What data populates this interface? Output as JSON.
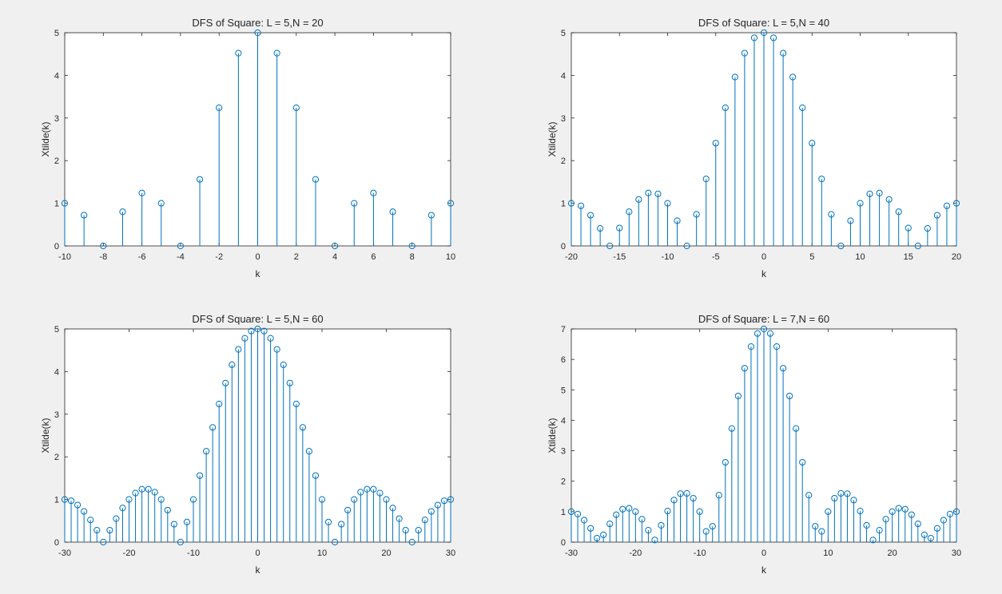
{
  "figure": {
    "background": "#f0f0f0",
    "axes_color": "#262626",
    "stem_color": "#0072bd"
  },
  "chart_data": [
    {
      "type": "stem",
      "title": "DFS of Square: L = 5,N = 20",
      "xlabel": "k",
      "ylabel": "Xtilde(k)",
      "xlim": [
        -10,
        10
      ],
      "ylim": [
        0,
        5
      ],
      "xticks": [
        -10,
        -8,
        -6,
        -4,
        -2,
        0,
        2,
        4,
        6,
        8,
        10
      ],
      "yticks": [
        0,
        1,
        2,
        3,
        4,
        5
      ],
      "x": [
        -10,
        -9,
        -8,
        -7,
        -6,
        -5,
        -4,
        -3,
        -2,
        -1,
        0,
        1,
        2,
        3,
        4,
        5,
        6,
        7,
        8,
        9,
        10
      ],
      "y": [
        1,
        0.72,
        0,
        0.8,
        1.24,
        1,
        0,
        1.56,
        3.24,
        4.52,
        5,
        4.52,
        3.24,
        1.56,
        0,
        1,
        1.24,
        0.8,
        0,
        0.72,
        1
      ]
    },
    {
      "type": "stem",
      "title": "DFS of Square: L = 5,N = 40",
      "xlabel": "k",
      "ylabel": "Xtilde(k)",
      "xlim": [
        -20,
        20
      ],
      "ylim": [
        0,
        5
      ],
      "xticks": [
        -20,
        -15,
        -10,
        -5,
        0,
        5,
        10,
        15,
        20
      ],
      "yticks": [
        0,
        1,
        2,
        3,
        4,
        5
      ],
      "x": [
        -20,
        -19,
        -18,
        -17,
        -16,
        -15,
        -14,
        -13,
        -12,
        -11,
        -10,
        -9,
        -8,
        -7,
        -6,
        -5,
        -4,
        -3,
        -2,
        -1,
        0,
        1,
        2,
        3,
        4,
        5,
        6,
        7,
        8,
        9,
        10,
        11,
        12,
        13,
        14,
        15,
        16,
        17,
        18,
        19,
        20
      ],
      "y": [
        1,
        0.94,
        0.72,
        0.41,
        0,
        0.42,
        0.8,
        1.09,
        1.24,
        1.22,
        1,
        0.59,
        0,
        0.74,
        1.57,
        2.41,
        3.24,
        3.96,
        4.52,
        4.88,
        5,
        4.88,
        4.52,
        3.96,
        3.24,
        2.41,
        1.57,
        0.74,
        0,
        0.59,
        1,
        1.22,
        1.24,
        1.09,
        0.8,
        0.42,
        0,
        0.41,
        0.72,
        0.94,
        1
      ]
    },
    {
      "type": "stem",
      "title": "DFS of Square: L = 5,N = 60",
      "xlabel": "k",
      "ylabel": "Xtilde(k)",
      "xlim": [
        -30,
        30
      ],
      "ylim": [
        0,
        5
      ],
      "xticks": [
        -30,
        -20,
        -10,
        0,
        10,
        20,
        30
      ],
      "yticks": [
        0,
        1,
        2,
        3,
        4,
        5
      ],
      "x": [
        -30,
        -29,
        -28,
        -27,
        -26,
        -25,
        -24,
        -23,
        -22,
        -21,
        -20,
        -19,
        -18,
        -17,
        -16,
        -15,
        -14,
        -13,
        -12,
        -11,
        -10,
        -9,
        -8,
        -7,
        -6,
        -5,
        -4,
        -3,
        -2,
        -1,
        0,
        1,
        2,
        3,
        4,
        5,
        6,
        7,
        8,
        9,
        10,
        11,
        12,
        13,
        14,
        15,
        16,
        17,
        18,
        19,
        20,
        21,
        22,
        23,
        24,
        25,
        26,
        27,
        28,
        29,
        30
      ],
      "y": [
        1,
        0.97,
        0.87,
        0.72,
        0.52,
        0.28,
        0,
        0.28,
        0.55,
        0.8,
        1,
        1.15,
        1.24,
        1.24,
        1.17,
        1,
        0.75,
        0.42,
        0,
        0.47,
        1,
        1.56,
        2.13,
        2.69,
        3.24,
        3.73,
        4.16,
        4.52,
        4.78,
        4.95,
        5,
        4.95,
        4.78,
        4.52,
        4.16,
        3.73,
        3.24,
        2.69,
        2.13,
        1.56,
        1,
        0.47,
        0,
        0.42,
        0.75,
        1,
        1.17,
        1.24,
        1.24,
        1.15,
        1,
        0.8,
        0.55,
        0.28,
        0,
        0.28,
        0.52,
        0.72,
        0.87,
        0.97,
        1
      ]
    },
    {
      "type": "stem",
      "title": "DFS of Square: L = 7,N = 60",
      "xlabel": "k",
      "ylabel": "Xtilde(k)",
      "xlim": [
        -30,
        30
      ],
      "ylim": [
        0,
        7
      ],
      "xticks": [
        -30,
        -20,
        -10,
        0,
        10,
        20,
        30
      ],
      "yticks": [
        0,
        1,
        2,
        3,
        4,
        5,
        6,
        7
      ],
      "x": [
        -30,
        -29,
        -28,
        -27,
        -26,
        -25,
        -24,
        -23,
        -22,
        -21,
        -20,
        -19,
        -18,
        -17,
        -16,
        -15,
        -14,
        -13,
        -12,
        -11,
        -10,
        -9,
        -8,
        -7,
        -6,
        -5,
        -4,
        -3,
        -2,
        -1,
        0,
        1,
        2,
        3,
        4,
        5,
        6,
        7,
        8,
        9,
        10,
        11,
        12,
        13,
        14,
        15,
        16,
        17,
        18,
        19,
        20,
        21,
        22,
        23,
        24,
        25,
        26,
        27,
        28,
        29,
        30
      ],
      "y": [
        1,
        0.92,
        0.72,
        0.45,
        0.13,
        0.24,
        0.6,
        0.9,
        1.08,
        1.11,
        1,
        0.75,
        0.39,
        0.07,
        0.55,
        1.02,
        1.38,
        1.59,
        1.6,
        1.44,
        1,
        0.35,
        0.52,
        1.54,
        2.62,
        3.73,
        4.8,
        5.71,
        6.42,
        6.85,
        7,
        6.85,
        6.42,
        5.71,
        4.8,
        3.73,
        2.62,
        1.54,
        0.52,
        0.35,
        1,
        1.44,
        1.6,
        1.59,
        1.38,
        1.02,
        0.55,
        0.07,
        0.39,
        0.75,
        1,
        1.11,
        1.08,
        0.9,
        0.6,
        0.24,
        0.13,
        0.45,
        0.72,
        0.92,
        1
      ]
    }
  ]
}
